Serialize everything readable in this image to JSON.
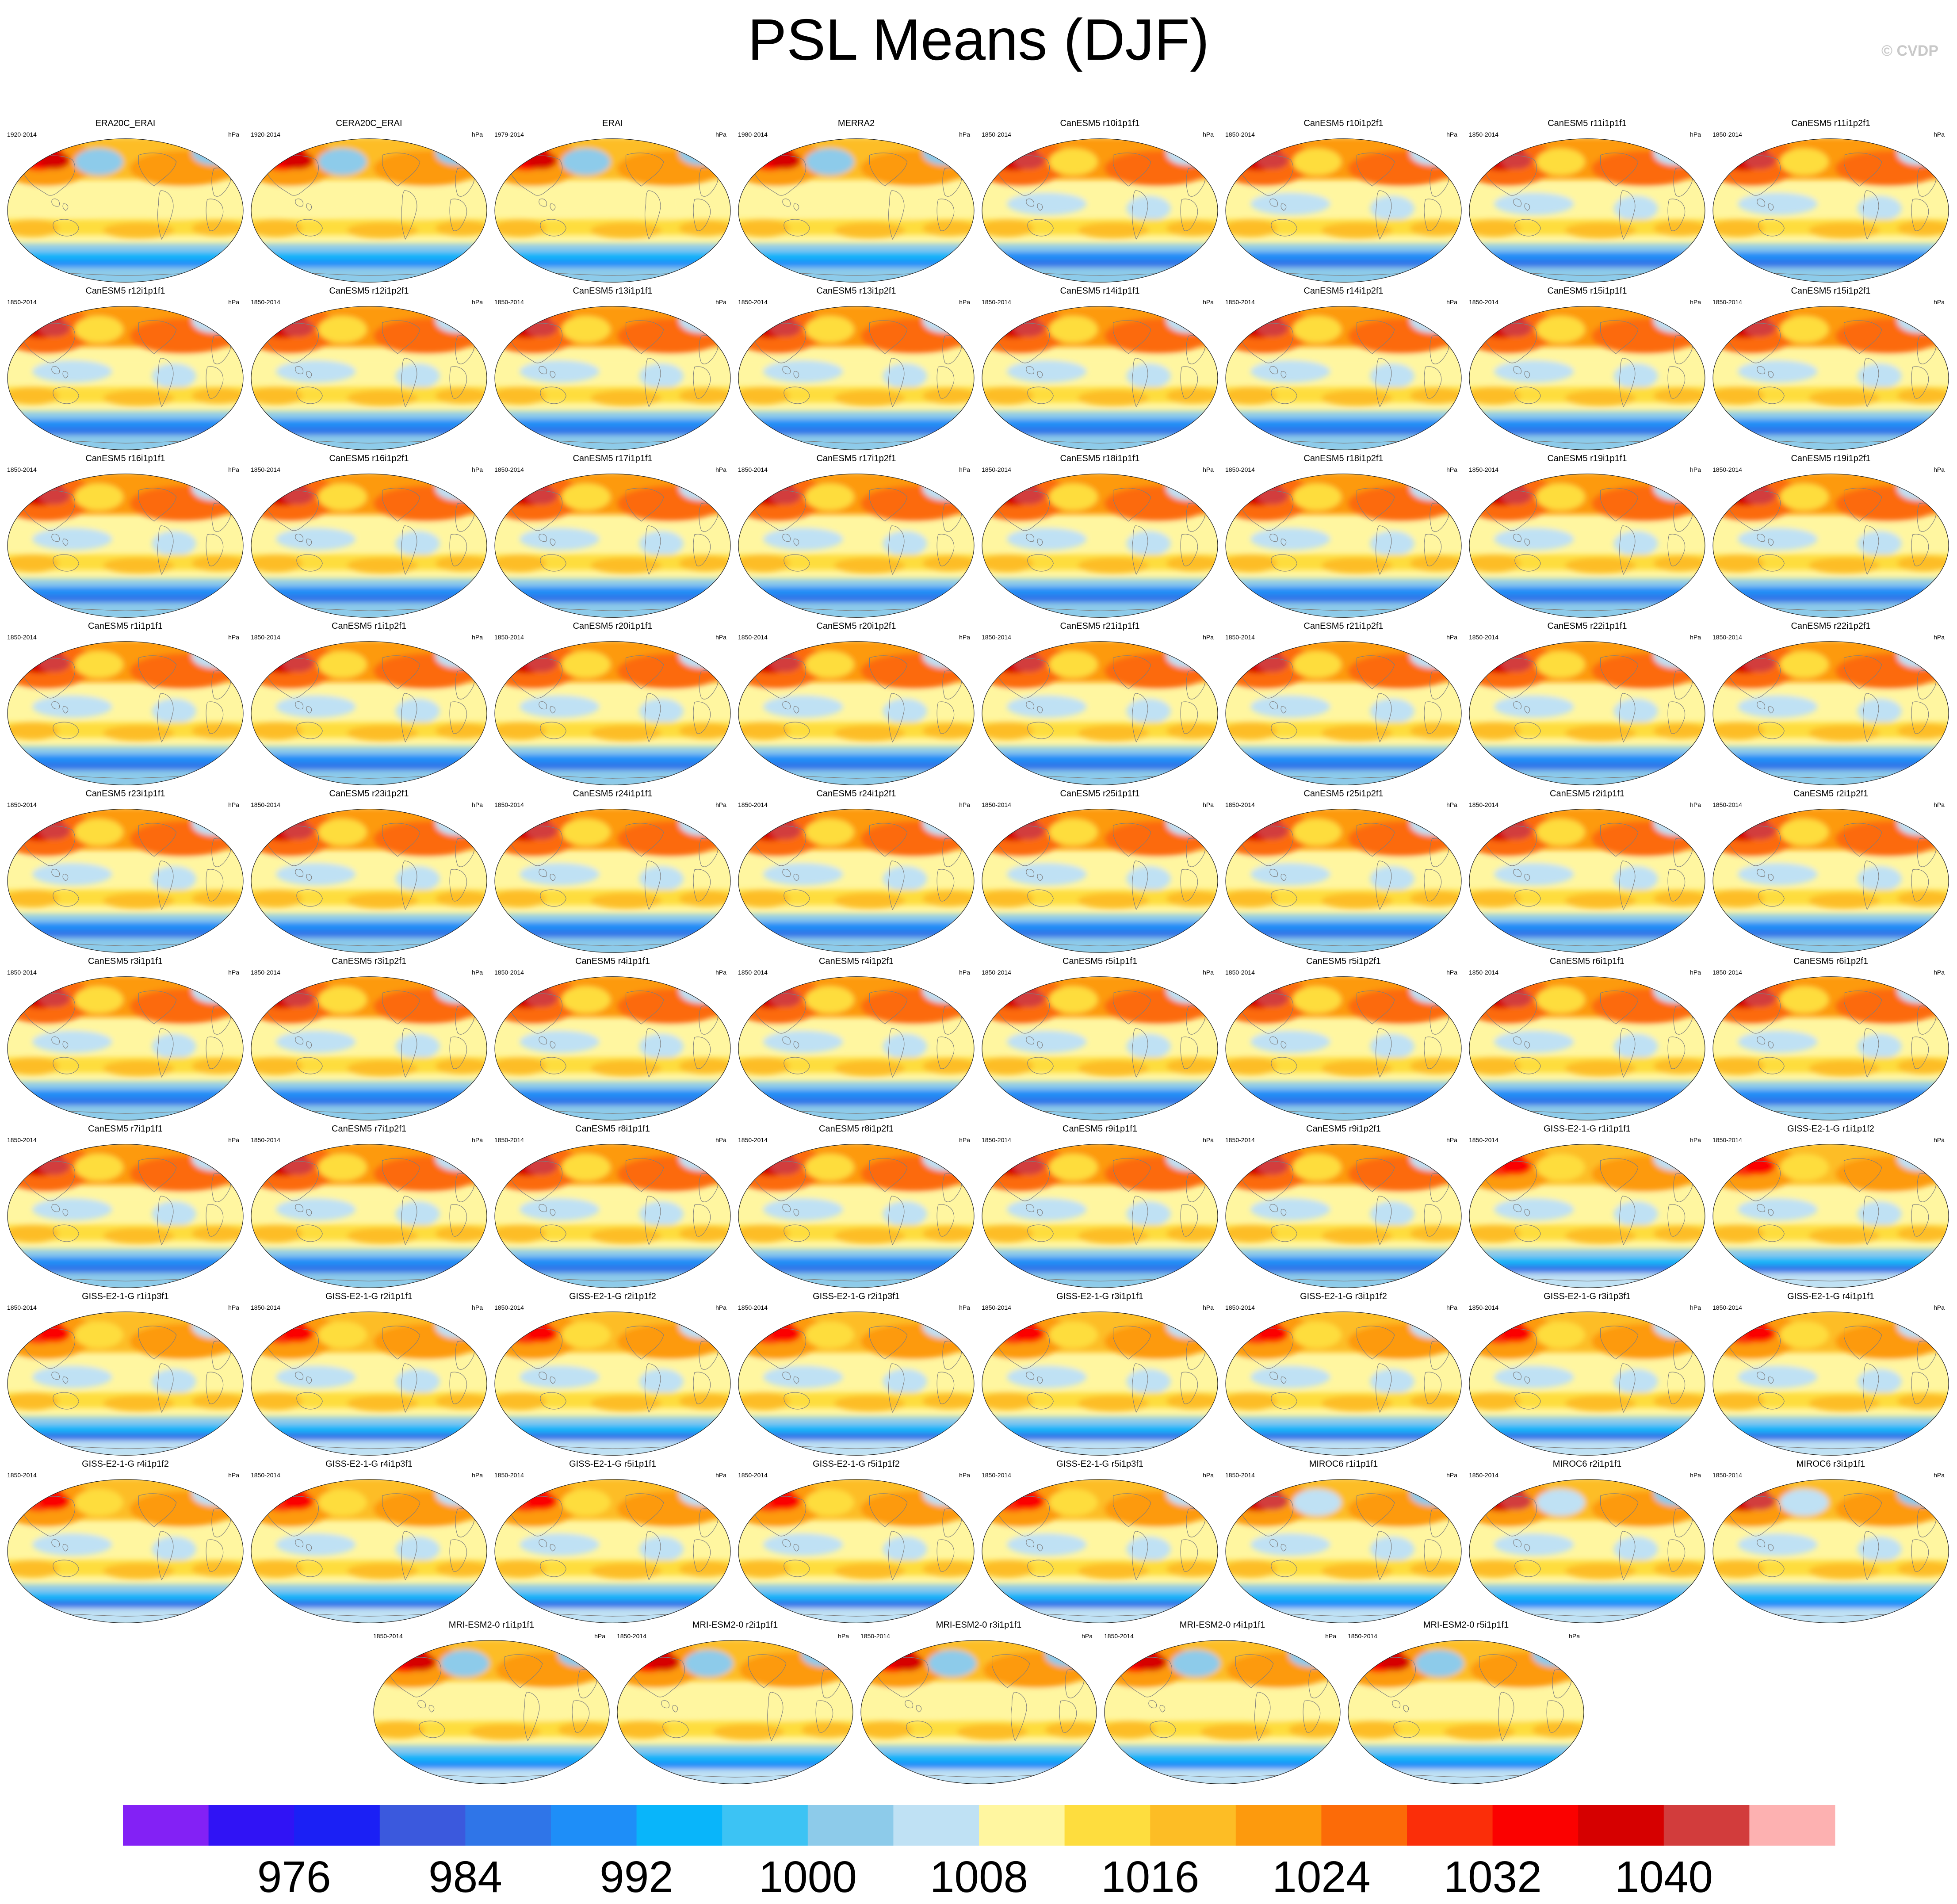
{
  "title": "PSL Means (DJF)",
  "copyright": "© CVDP",
  "units": "hPa",
  "colors": {
    "levels": [
      "#8321f5",
      "#3013f5",
      "#1b20f5",
      "#3b59dd",
      "#2f75e8",
      "#1e8ef8",
      "#09b5fa",
      "#3cc3f4",
      "#8dcbea",
      "#bfe1f4",
      "#fff6a0",
      "#fedd3e",
      "#fdbd25",
      "#fd9a0d",
      "#fc6b08",
      "#fb2e09",
      "#fb0100",
      "#d60000",
      "#d23c3c",
      "#fdb1b1"
    ]
  },
  "colorbar": {
    "labels": [
      "976",
      "984",
      "992",
      "1000",
      "1008",
      "1016",
      "1024",
      "1032",
      "1040"
    ]
  },
  "panels": [
    {
      "title": "ERA20C_ERAI",
      "years": "1920-2014",
      "units": "hPa",
      "style": "obs"
    },
    {
      "title": "CERA20C_ERAI",
      "years": "1920-2014",
      "units": "hPa",
      "style": "obs"
    },
    {
      "title": "ERAI",
      "years": "1979-2014",
      "units": "hPa",
      "style": "obs"
    },
    {
      "title": "MERRA2",
      "years": "1980-2014",
      "units": "hPa",
      "style": "obs"
    },
    {
      "title": "CanESM5 r10i1p1f1",
      "years": "1850-2014",
      "units": "hPa",
      "style": "can"
    },
    {
      "title": "CanESM5 r10i1p2f1",
      "years": "1850-2014",
      "units": "hPa",
      "style": "can"
    },
    {
      "title": "CanESM5 r11i1p1f1",
      "years": "1850-2014",
      "units": "hPa",
      "style": "can"
    },
    {
      "title": "CanESM5 r11i1p2f1",
      "years": "1850-2014",
      "units": "hPa",
      "style": "can"
    },
    {
      "title": "CanESM5 r12i1p1f1",
      "years": "1850-2014",
      "units": "hPa",
      "style": "can"
    },
    {
      "title": "CanESM5 r12i1p2f1",
      "years": "1850-2014",
      "units": "hPa",
      "style": "can"
    },
    {
      "title": "CanESM5 r13i1p1f1",
      "years": "1850-2014",
      "units": "hPa",
      "style": "can"
    },
    {
      "title": "CanESM5 r13i1p2f1",
      "years": "1850-2014",
      "units": "hPa",
      "style": "can"
    },
    {
      "title": "CanESM5 r14i1p1f1",
      "years": "1850-2014",
      "units": "hPa",
      "style": "can"
    },
    {
      "title": "CanESM5 r14i1p2f1",
      "years": "1850-2014",
      "units": "hPa",
      "style": "can"
    },
    {
      "title": "CanESM5 r15i1p1f1",
      "years": "1850-2014",
      "units": "hPa",
      "style": "can"
    },
    {
      "title": "CanESM5 r15i1p2f1",
      "years": "1850-2014",
      "units": "hPa",
      "style": "can"
    },
    {
      "title": "CanESM5 r16i1p1f1",
      "years": "1850-2014",
      "units": "hPa",
      "style": "can"
    },
    {
      "title": "CanESM5 r16i1p2f1",
      "years": "1850-2014",
      "units": "hPa",
      "style": "can"
    },
    {
      "title": "CanESM5 r17i1p1f1",
      "years": "1850-2014",
      "units": "hPa",
      "style": "can"
    },
    {
      "title": "CanESM5 r17i1p2f1",
      "years": "1850-2014",
      "units": "hPa",
      "style": "can"
    },
    {
      "title": "CanESM5 r18i1p1f1",
      "years": "1850-2014",
      "units": "hPa",
      "style": "can"
    },
    {
      "title": "CanESM5 r18i1p2f1",
      "years": "1850-2014",
      "units": "hPa",
      "style": "can"
    },
    {
      "title": "CanESM5 r19i1p1f1",
      "years": "1850-2014",
      "units": "hPa",
      "style": "can"
    },
    {
      "title": "CanESM5 r19i1p2f1",
      "years": "1850-2014",
      "units": "hPa",
      "style": "can"
    },
    {
      "title": "CanESM5 r1i1p1f1",
      "years": "1850-2014",
      "units": "hPa",
      "style": "can"
    },
    {
      "title": "CanESM5 r1i1p2f1",
      "years": "1850-2014",
      "units": "hPa",
      "style": "can"
    },
    {
      "title": "CanESM5 r20i1p1f1",
      "years": "1850-2014",
      "units": "hPa",
      "style": "can"
    },
    {
      "title": "CanESM5 r20i1p2f1",
      "years": "1850-2014",
      "units": "hPa",
      "style": "can"
    },
    {
      "title": "CanESM5 r21i1p1f1",
      "years": "1850-2014",
      "units": "hPa",
      "style": "can"
    },
    {
      "title": "CanESM5 r21i1p2f1",
      "years": "1850-2014",
      "units": "hPa",
      "style": "can"
    },
    {
      "title": "CanESM5 r22i1p1f1",
      "years": "1850-2014",
      "units": "hPa",
      "style": "can"
    },
    {
      "title": "CanESM5 r22i1p2f1",
      "years": "1850-2014",
      "units": "hPa",
      "style": "can"
    },
    {
      "title": "CanESM5 r23i1p1f1",
      "years": "1850-2014",
      "units": "hPa",
      "style": "can"
    },
    {
      "title": "CanESM5 r23i1p2f1",
      "years": "1850-2014",
      "units": "hPa",
      "style": "can"
    },
    {
      "title": "CanESM5 r24i1p1f1",
      "years": "1850-2014",
      "units": "hPa",
      "style": "can"
    },
    {
      "title": "CanESM5 r24i1p2f1",
      "years": "1850-2014",
      "units": "hPa",
      "style": "can"
    },
    {
      "title": "CanESM5 r25i1p1f1",
      "years": "1850-2014",
      "units": "hPa",
      "style": "can"
    },
    {
      "title": "CanESM5 r25i1p2f1",
      "years": "1850-2014",
      "units": "hPa",
      "style": "can"
    },
    {
      "title": "CanESM5 r2i1p1f1",
      "years": "1850-2014",
      "units": "hPa",
      "style": "can"
    },
    {
      "title": "CanESM5 r2i1p2f1",
      "years": "1850-2014",
      "units": "hPa",
      "style": "can"
    },
    {
      "title": "CanESM5 r3i1p1f1",
      "years": "1850-2014",
      "units": "hPa",
      "style": "can"
    },
    {
      "title": "CanESM5 r3i1p2f1",
      "years": "1850-2014",
      "units": "hPa",
      "style": "can"
    },
    {
      "title": "CanESM5 r4i1p1f1",
      "years": "1850-2014",
      "units": "hPa",
      "style": "can"
    },
    {
      "title": "CanESM5 r4i1p2f1",
      "years": "1850-2014",
      "units": "hPa",
      "style": "can"
    },
    {
      "title": "CanESM5 r5i1p1f1",
      "years": "1850-2014",
      "units": "hPa",
      "style": "can"
    },
    {
      "title": "CanESM5 r5i1p2f1",
      "years": "1850-2014",
      "units": "hPa",
      "style": "can"
    },
    {
      "title": "CanESM5 r6i1p1f1",
      "years": "1850-2014",
      "units": "hPa",
      "style": "can"
    },
    {
      "title": "CanESM5 r6i1p2f1",
      "years": "1850-2014",
      "units": "hPa",
      "style": "can"
    },
    {
      "title": "CanESM5 r7i1p1f1",
      "years": "1850-2014",
      "units": "hPa",
      "style": "can"
    },
    {
      "title": "CanESM5 r7i1p2f1",
      "years": "1850-2014",
      "units": "hPa",
      "style": "can"
    },
    {
      "title": "CanESM5 r8i1p1f1",
      "years": "1850-2014",
      "units": "hPa",
      "style": "can"
    },
    {
      "title": "CanESM5 r8i1p2f1",
      "years": "1850-2014",
      "units": "hPa",
      "style": "can"
    },
    {
      "title": "CanESM5 r9i1p1f1",
      "years": "1850-2014",
      "units": "hPa",
      "style": "can"
    },
    {
      "title": "CanESM5 r9i1p2f1",
      "years": "1850-2014",
      "units": "hPa",
      "style": "can"
    },
    {
      "title": "GISS-E2-1-G r1i1p1f1",
      "years": "1850-2014",
      "units": "hPa",
      "style": "giss"
    },
    {
      "title": "GISS-E2-1-G r1i1p1f2",
      "years": "1850-2014",
      "units": "hPa",
      "style": "giss"
    },
    {
      "title": "GISS-E2-1-G r1i1p3f1",
      "years": "1850-2014",
      "units": "hPa",
      "style": "giss"
    },
    {
      "title": "GISS-E2-1-G r2i1p1f1",
      "years": "1850-2014",
      "units": "hPa",
      "style": "giss"
    },
    {
      "title": "GISS-E2-1-G r2i1p1f2",
      "years": "1850-2014",
      "units": "hPa",
      "style": "giss"
    },
    {
      "title": "GISS-E2-1-G r2i1p3f1",
      "years": "1850-2014",
      "units": "hPa",
      "style": "giss"
    },
    {
      "title": "GISS-E2-1-G r3i1p1f1",
      "years": "1850-2014",
      "units": "hPa",
      "style": "giss"
    },
    {
      "title": "GISS-E2-1-G r3i1p1f2",
      "years": "1850-2014",
      "units": "hPa",
      "style": "giss"
    },
    {
      "title": "GISS-E2-1-G r3i1p3f1",
      "years": "1850-2014",
      "units": "hPa",
      "style": "giss"
    },
    {
      "title": "GISS-E2-1-G r4i1p1f1",
      "years": "1850-2014",
      "units": "hPa",
      "style": "giss"
    },
    {
      "title": "GISS-E2-1-G r4i1p1f2",
      "years": "1850-2014",
      "units": "hPa",
      "style": "giss"
    },
    {
      "title": "GISS-E2-1-G r4i1p3f1",
      "years": "1850-2014",
      "units": "hPa",
      "style": "giss"
    },
    {
      "title": "GISS-E2-1-G r5i1p1f1",
      "years": "1850-2014",
      "units": "hPa",
      "style": "giss"
    },
    {
      "title": "GISS-E2-1-G r5i1p1f2",
      "years": "1850-2014",
      "units": "hPa",
      "style": "giss"
    },
    {
      "title": "GISS-E2-1-G r5i1p3f1",
      "years": "1850-2014",
      "units": "hPa",
      "style": "giss"
    },
    {
      "title": "MIROC6 r1i1p1f1",
      "years": "1850-2014",
      "units": "hPa",
      "style": "miroc"
    },
    {
      "title": "MIROC6 r2i1p1f1",
      "years": "1850-2014",
      "units": "hPa",
      "style": "miroc"
    },
    {
      "title": "MIROC6 r3i1p1f1",
      "years": "1850-2014",
      "units": "hPa",
      "style": "miroc"
    },
    {
      "title": "MRI-ESM2-0 r1i1p1f1",
      "years": "1850-2014",
      "units": "hPa",
      "style": "mri"
    },
    {
      "title": "MRI-ESM2-0 r2i1p1f1",
      "years": "1850-2014",
      "units": "hPa",
      "style": "mri"
    },
    {
      "title": "MRI-ESM2-0 r3i1p1f1",
      "years": "1850-2014",
      "units": "hPa",
      "style": "mri"
    },
    {
      "title": "MRI-ESM2-0 r4i1p1f1",
      "years": "1850-2014",
      "units": "hPa",
      "style": "mri"
    },
    {
      "title": "MRI-ESM2-0 r5i1p1f1",
      "years": "1850-2014",
      "units": "hPa",
      "style": "mri"
    }
  ]
}
